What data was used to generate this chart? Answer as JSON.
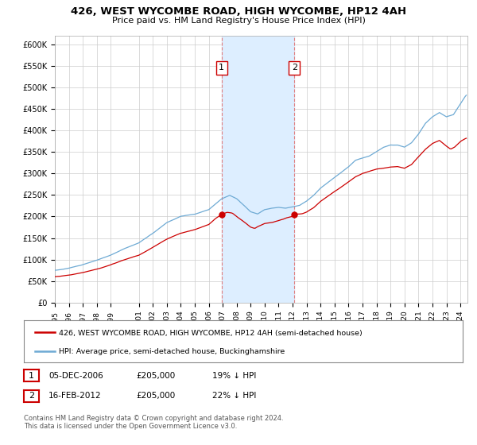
{
  "title": "426, WEST WYCOMBE ROAD, HIGH WYCOMBE, HP12 4AH",
  "subtitle": "Price paid vs. HM Land Registry's House Price Index (HPI)",
  "legend_line1": "426, WEST WYCOMBE ROAD, HIGH WYCOMBE, HP12 4AH (semi-detached house)",
  "legend_line2": "HPI: Average price, semi-detached house, Buckinghamshire",
  "transaction1_date": "05-DEC-2006",
  "transaction1_price": "£205,000",
  "transaction1_hpi": "19% ↓ HPI",
  "transaction1_year": 2006.92,
  "transaction2_date": "16-FEB-2012",
  "transaction2_price": "£205,000",
  "transaction2_hpi": "22% ↓ HPI",
  "transaction2_year": 2012.12,
  "footnote": "Contains HM Land Registry data © Crown copyright and database right 2024.\nThis data is licensed under the Open Government Licence v3.0.",
  "highlight_start": 2006.92,
  "highlight_end": 2012.12,
  "hpi_color": "#6eaad4",
  "price_color": "#cc0000",
  "highlight_color": "#ddeeff",
  "highlight_border": "#e08080",
  "background_color": "#ffffff",
  "ylim": [
    0,
    620000
  ],
  "xlim_start": 1995.0,
  "xlim_end": 2024.5,
  "yticks": [
    0,
    50000,
    100000,
    150000,
    200000,
    250000,
    300000,
    350000,
    400000,
    450000,
    500000,
    550000,
    600000
  ],
  "ytick_labels": [
    "£0",
    "£50K",
    "£100K",
    "£150K",
    "£200K",
    "£250K",
    "£300K",
    "£350K",
    "£400K",
    "£450K",
    "£500K",
    "£550K",
    "£600K"
  ],
  "xtick_years": [
    1995,
    1996,
    1997,
    1998,
    1999,
    2001,
    2002,
    2003,
    2004,
    2005,
    2006,
    2007,
    2008,
    2009,
    2010,
    2011,
    2012,
    2013,
    2014,
    2015,
    2016,
    2017,
    2018,
    2019,
    2020,
    2021,
    2022,
    2023,
    2024
  ]
}
